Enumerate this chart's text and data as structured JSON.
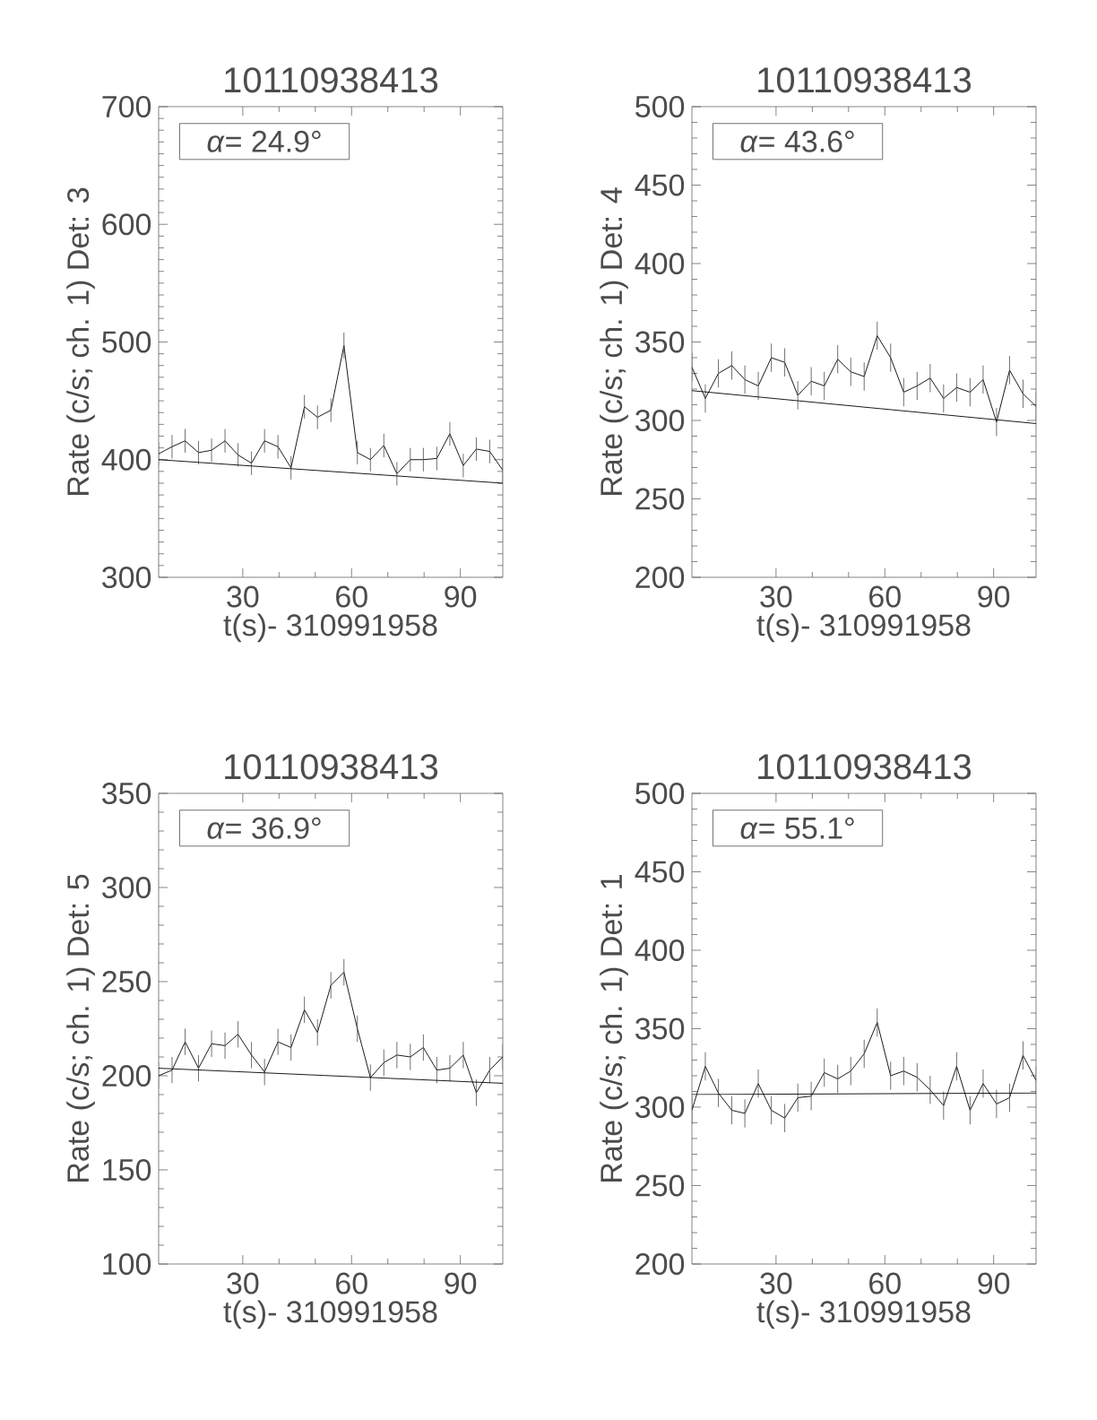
{
  "chart_data": [
    {
      "type": "line",
      "title": "10110938413",
      "xlabel": "t(s)- 310991958",
      "ylabel": "Rate (c/s; ch. 1) Det: 3",
      "xlim": [
        6.8,
        101.7
      ],
      "ylim": [
        300,
        700
      ],
      "xticks": [
        30,
        60,
        90
      ],
      "yticks": [
        300,
        400,
        500,
        600,
        700
      ],
      "annotations": [
        "*α*= 24.9°"
      ],
      "series": [
        {
          "color": "#000000",
          "x": [
            6.8,
            10.5,
            14.1,
            17.8,
            21.4,
            25.1,
            28.7,
            32.4,
            36.0,
            39.7,
            43.3,
            47.0,
            50.6,
            54.3,
            57.9,
            61.6,
            65.2,
            68.9,
            72.5,
            76.2,
            79.8,
            83.5,
            87.1,
            90.8,
            94.4,
            98.1,
            101.7
          ],
          "values": [
            405,
            411,
            416,
            406,
            408,
            416,
            404,
            397,
            416,
            411,
            393,
            445,
            436,
            442,
            497,
            406,
            400,
            412,
            388,
            400,
            400,
            401,
            422,
            395,
            409,
            407,
            391
          ],
          "errors": [
            10,
            10,
            10,
            10,
            10,
            10,
            10,
            10,
            10,
            10,
            10,
            10,
            10,
            10,
            11,
            10,
            10,
            10,
            10,
            10,
            10,
            10,
            10,
            10,
            10,
            10,
            10
          ]
        },
        {
          "color": "#000000",
          "x": [
            6.8,
            101.7
          ],
          "values": [
            400,
            380
          ]
        }
      ]
    },
    {
      "type": "line",
      "title": "10110938413",
      "xlabel": "t(s)- 310991958",
      "ylabel": "Rate (c/s; ch. 1) Det: 4",
      "xlim": [
        6.8,
        101.7
      ],
      "ylim": [
        200,
        500
      ],
      "xticks": [
        30,
        60,
        90
      ],
      "yticks": [
        200,
        250,
        300,
        350,
        400,
        450,
        500
      ],
      "annotations": [
        "*α*= 43.6°"
      ],
      "series": [
        {
          "color": "#000000",
          "x": [
            6.8,
            10.5,
            14.1,
            17.8,
            21.4,
            25.1,
            28.7,
            32.4,
            36.0,
            39.7,
            43.3,
            47.0,
            50.6,
            54.3,
            57.9,
            61.6,
            65.2,
            68.9,
            72.5,
            76.2,
            79.8,
            83.5,
            87.1,
            90.8,
            94.4,
            98.1,
            101.7
          ],
          "values": [
            334,
            314,
            330,
            335,
            326,
            322,
            340,
            337,
            316,
            325,
            322,
            339,
            331,
            328,
            354,
            340,
            318,
            322,
            327,
            314,
            321,
            318,
            326,
            299,
            332,
            317,
            309
          ],
          "errors": [
            9,
            9,
            9,
            9,
            9,
            9,
            9,
            9,
            9,
            9,
            9,
            9,
            9,
            9,
            9,
            9,
            9,
            9,
            9,
            9,
            9,
            9,
            9,
            9,
            9,
            9,
            9
          ]
        },
        {
          "color": "#000000",
          "x": [
            6.8,
            101.7
          ],
          "values": [
            319,
            298
          ]
        }
      ]
    },
    {
      "type": "line",
      "title": "10110938413",
      "xlabel": "t(s)- 310991958",
      "ylabel": "Rate (c/s; ch. 1) Det: 5",
      "xlim": [
        6.8,
        101.7
      ],
      "ylim": [
        100,
        350
      ],
      "xticks": [
        30,
        60,
        90
      ],
      "yticks": [
        100,
        150,
        200,
        250,
        300,
        350
      ],
      "annotations": [
        "*α*= 36.9°"
      ],
      "series": [
        {
          "color": "#000000",
          "x": [
            6.8,
            10.5,
            14.1,
            17.8,
            21.4,
            25.1,
            28.7,
            32.4,
            36.0,
            39.7,
            43.3,
            47.0,
            50.6,
            54.3,
            57.9,
            61.6,
            65.2,
            68.9,
            72.5,
            76.2,
            79.8,
            83.5,
            87.1,
            90.8,
            94.4,
            98.1,
            101.7
          ],
          "values": [
            200,
            203,
            218,
            204,
            217,
            216,
            222,
            211,
            202,
            218,
            215,
            235,
            223,
            248,
            255,
            225,
            199,
            207,
            211,
            210,
            215,
            203,
            204,
            211,
            191,
            203,
            210
          ],
          "errors": [
            7,
            7,
            7,
            7,
            7,
            7,
            7,
            7,
            7,
            7,
            7,
            7,
            7,
            7,
            7,
            7,
            7,
            7,
            7,
            7,
            7,
            7,
            7,
            7,
            7,
            7,
            7
          ]
        },
        {
          "color": "#000000",
          "x": [
            6.8,
            101.7
          ],
          "values": [
            204,
            196
          ]
        }
      ]
    },
    {
      "type": "line",
      "title": "10110938413",
      "xlabel": "t(s)- 310991958",
      "ylabel": "Rate (c/s; ch. 1) Det: 1",
      "xlim": [
        6.8,
        101.7
      ],
      "ylim": [
        200,
        500
      ],
      "xticks": [
        30,
        60,
        90
      ],
      "yticks": [
        200,
        250,
        300,
        350,
        400,
        450,
        500
      ],
      "annotations": [
        "*α*= 55.1°"
      ],
      "series": [
        {
          "color": "#000000",
          "x": [
            6.8,
            10.5,
            14.1,
            17.8,
            21.4,
            25.1,
            28.7,
            32.4,
            36.0,
            39.7,
            43.3,
            47.0,
            50.6,
            54.3,
            57.9,
            61.6,
            65.2,
            68.9,
            72.5,
            76.2,
            79.8,
            83.5,
            87.1,
            90.8,
            94.4,
            98.1,
            101.7
          ],
          "values": [
            298,
            326,
            309,
            298,
            296,
            315,
            298,
            293,
            306,
            307,
            322,
            318,
            323,
            334,
            354,
            320,
            323,
            319,
            311,
            301,
            326,
            298,
            315,
            302,
            306,
            333,
            317
          ],
          "errors": [
            9,
            9,
            9,
            9,
            9,
            9,
            9,
            9,
            9,
            9,
            9,
            9,
            9,
            9,
            9,
            9,
            9,
            9,
            9,
            9,
            9,
            9,
            9,
            9,
            9,
            9,
            9
          ]
        },
        {
          "color": "#000000",
          "x": [
            6.8,
            101.7
          ],
          "values": [
            308,
            309
          ]
        }
      ]
    }
  ]
}
